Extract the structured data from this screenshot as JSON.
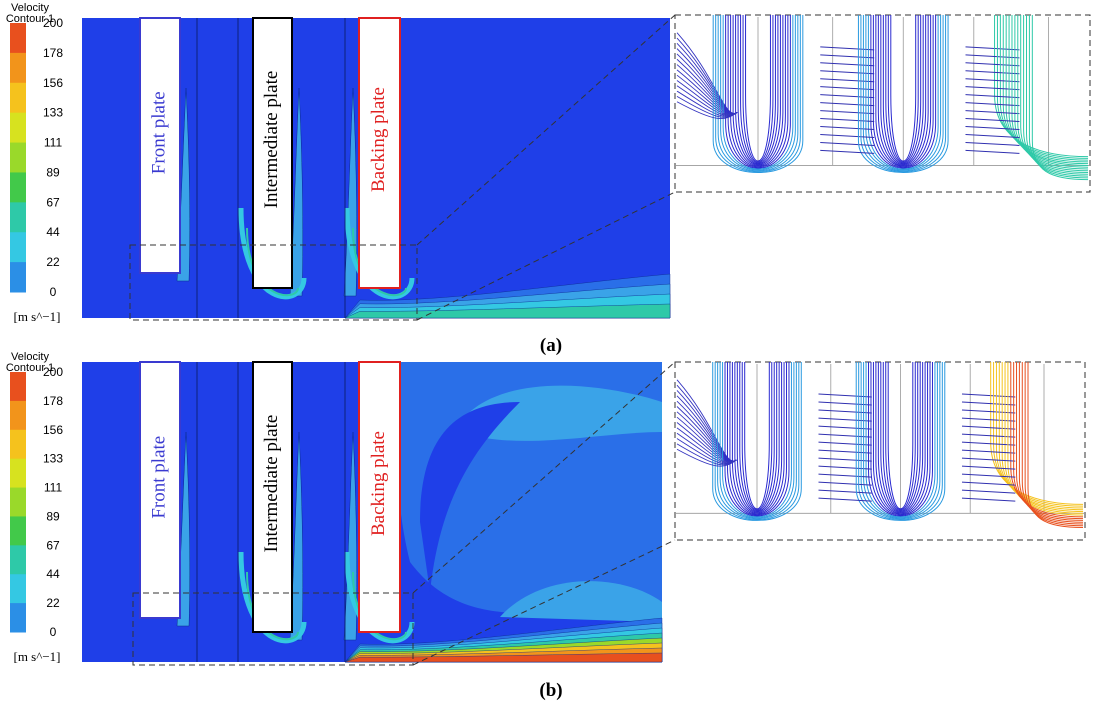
{
  "panels": [
    {
      "legend": {
        "title": "Velocity",
        "subtitle": "Contour 1",
        "levels": [
          200,
          178,
          156,
          133,
          111,
          89,
          67,
          44,
          22,
          0
        ],
        "unit": "[m s^−1]"
      },
      "plates": [
        "Front plate",
        "Intermediate plate",
        "Backing plate"
      ],
      "caption": "(a)"
    },
    {
      "legend": {
        "title": "Velocity",
        "subtitle": "Contour 1",
        "levels": [
          200,
          178,
          156,
          133,
          111,
          89,
          67,
          44,
          22,
          0
        ],
        "unit": "[m s^−1]"
      },
      "plates": [
        "Front plate",
        "Intermediate plate",
        "Backing plate"
      ],
      "caption": "(b)"
    }
  ]
}
